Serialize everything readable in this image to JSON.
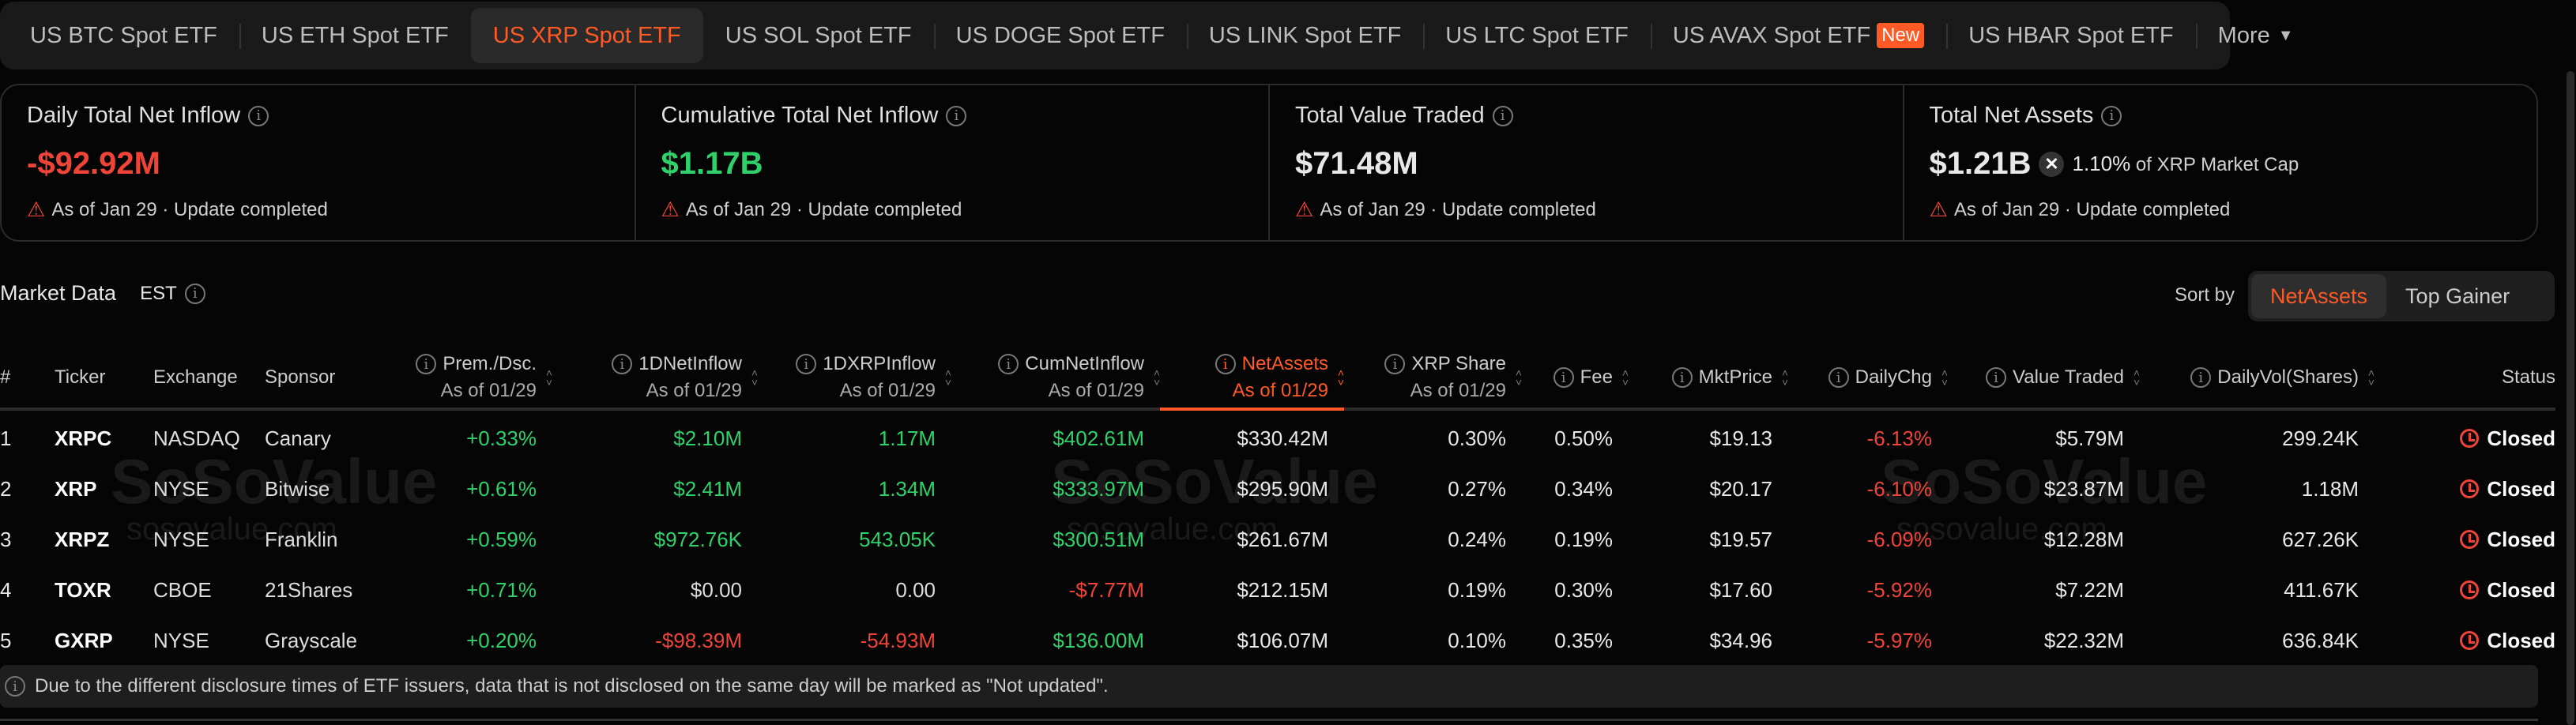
{
  "tabs": [
    {
      "label": "US BTC Spot ETF"
    },
    {
      "label": "US ETH Spot ETF"
    },
    {
      "label": "US XRP Spot ETF",
      "active": true
    },
    {
      "label": "US SOL Spot ETF"
    },
    {
      "label": "US DOGE Spot ETF"
    },
    {
      "label": "US LINK Spot ETF"
    },
    {
      "label": "US LTC Spot ETF"
    },
    {
      "label": "US AVAX Spot ETF",
      "badge": "New"
    },
    {
      "label": "US HBAR Spot ETF"
    },
    {
      "label": "More"
    }
  ],
  "cards": [
    {
      "title": "Daily Total Net Inflow",
      "value": "-$92.92M",
      "tone": "neg",
      "status": "As of Jan 29 · Update completed"
    },
    {
      "title": "Cumulative Total Net Inflow",
      "value": "$1.17B",
      "tone": "pos",
      "status": "As of Jan 29 · Update completed"
    },
    {
      "title": "Total Value Traded",
      "value": "$71.48M",
      "tone": "",
      "status": "As of Jan 29 · Update completed"
    },
    {
      "title": "Total Net Assets",
      "value": "$1.21B",
      "tone": "",
      "status": "As of Jan 29 · Update completed",
      "mcap_pct": "1.10%",
      "mcap_label": "of XRP Market Cap"
    }
  ],
  "market": {
    "title": "Market Data",
    "tz": "EST",
    "sort_by": "Sort by",
    "sort_options": [
      "NetAssets",
      "Top Gainer"
    ],
    "sort_active": "NetAssets"
  },
  "columns": [
    {
      "label": "#"
    },
    {
      "label": "Ticker"
    },
    {
      "label": "Exchange"
    },
    {
      "label": "Sponsor"
    },
    {
      "label": "Prem./Dsc.",
      "sub": "As of 01/29",
      "info": true,
      "sort": true
    },
    {
      "label": "1DNetInflow",
      "sub": "As of 01/29",
      "info": true,
      "sort": true
    },
    {
      "label": "1DXRPInflow",
      "sub": "As of 01/29",
      "info": true,
      "sort": true
    },
    {
      "label": "CumNetInflow",
      "sub": "As of 01/29",
      "info": true,
      "sort": true
    },
    {
      "label": "NetAssets",
      "sub": "As of 01/29",
      "info": true,
      "sort": true,
      "sorted": true
    },
    {
      "label": "XRP Share",
      "sub": "As of 01/29",
      "info": true,
      "sort": true
    },
    {
      "label": "Fee",
      "info": true,
      "sort": true
    },
    {
      "label": "MktPrice",
      "info": true,
      "sort": true
    },
    {
      "label": "DailyChg",
      "info": true,
      "sort": true
    },
    {
      "label": "Value Traded",
      "info": true,
      "sort": true
    },
    {
      "label": "DailyVol(Shares)",
      "info": true,
      "sort": true
    },
    {
      "label": "Status"
    }
  ],
  "rows": [
    [
      "1",
      "XRPC",
      "NASDAQ",
      "Canary",
      "+0.33%",
      "$2.10M",
      "1.17M",
      "$402.61M",
      "$330.42M",
      "0.30%",
      "0.50%",
      "$19.13",
      "-6.13%",
      "$5.79M",
      "299.24K",
      "Closed"
    ],
    [
      "2",
      "XRP",
      "NYSE",
      "Bitwise",
      "+0.61%",
      "$2.41M",
      "1.34M",
      "$333.97M",
      "$295.90M",
      "0.27%",
      "0.34%",
      "$20.17",
      "-6.10%",
      "$23.87M",
      "1.18M",
      "Closed"
    ],
    [
      "3",
      "XRPZ",
      "NYSE",
      "Franklin",
      "+0.59%",
      "$972.76K",
      "543.05K",
      "$300.51M",
      "$261.67M",
      "0.24%",
      "0.19%",
      "$19.57",
      "-6.09%",
      "$12.28M",
      "627.26K",
      "Closed"
    ],
    [
      "4",
      "TOXR",
      "CBOE",
      "21Shares",
      "+0.71%",
      "$0.00",
      "0.00",
      "-$7.77M",
      "$212.15M",
      "0.19%",
      "0.30%",
      "$17.60",
      "-5.92%",
      "$7.22M",
      "411.67K",
      "Closed"
    ],
    [
      "5",
      "GXRP",
      "NYSE",
      "Grayscale",
      "+0.20%",
      "-$98.39M",
      "-54.93M",
      "$136.00M",
      "$106.07M",
      "0.10%",
      "0.35%",
      "$34.96",
      "-5.97%",
      "$22.32M",
      "636.84K",
      "Closed"
    ]
  ],
  "note": "Due to the different disclosure times of ETF issuers, data that is not disclosed on the same day will be marked as \"Not updated\".",
  "watermark": {
    "brand": "SoSoValue",
    "url": "sosovalue.com"
  },
  "colors": {
    "accent": "#ff5a26",
    "positive": "#2fd16b",
    "negative": "#f04438",
    "background": "#050505"
  }
}
